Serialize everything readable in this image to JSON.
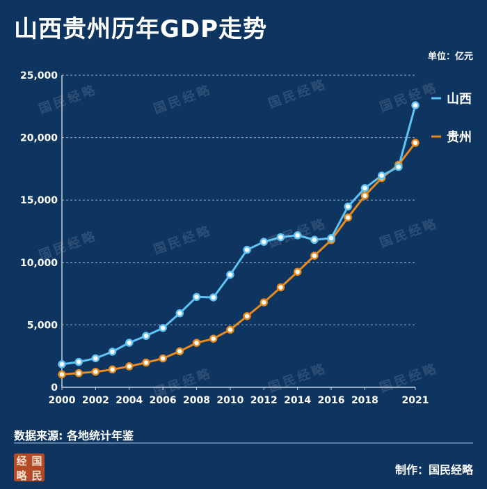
{
  "header": {
    "title": "山西贵州历年GDP走势",
    "unit": "单位：亿元"
  },
  "footer": {
    "source": "数据来源: 各地统计年鉴",
    "credit": "制作：国民经略",
    "logo_chars": [
      "经",
      "国",
      "略",
      "民"
    ]
  },
  "watermark": "国民经略",
  "colors": {
    "background": "#0e3560",
    "shanxi": "#5ec3f5",
    "guizhou": "#e88a1e"
  },
  "chart_data": {
    "type": "line",
    "x": [
      2000,
      2001,
      2002,
      2003,
      2004,
      2005,
      2006,
      2007,
      2008,
      2009,
      2010,
      2011,
      2012,
      2013,
      2014,
      2015,
      2016,
      2017,
      2018,
      2019,
      2020,
      2021
    ],
    "series": [
      {
        "name": "山西",
        "color": "#5ec3f5",
        "values": [
          1846,
          2030,
          2325,
          2855,
          3571,
          4121,
          4752,
          5934,
          7238,
          7201,
          9022,
          11014,
          11653,
          12024,
          12176,
          11816,
          11946,
          14482,
          15958,
          16962,
          17652,
          22590
        ]
      },
      {
        "name": "贵州",
        "color": "#e88a1e",
        "values": [
          1030,
          1134,
          1244,
          1427,
          1678,
          1979,
          2315,
          2884,
          3562,
          3894,
          4613,
          5700,
          6802,
          8008,
          9251,
          10541,
          11792,
          13605,
          15353,
          16769,
          17827,
          19586
        ]
      }
    ],
    "x_ticks": [
      2000,
      2002,
      2004,
      2006,
      2008,
      2010,
      2012,
      2014,
      2016,
      2018,
      2021
    ],
    "y_ticks": [
      0,
      5000,
      10000,
      15000,
      20000,
      25000
    ],
    "y_tick_labels": [
      "0",
      "5,000",
      "10,000",
      "15,000",
      "20,000",
      "25,000"
    ],
    "ylim": [
      0,
      25000
    ],
    "xlim": [
      2000,
      2021
    ],
    "grid": "horizontal dashed",
    "legend": "right"
  }
}
